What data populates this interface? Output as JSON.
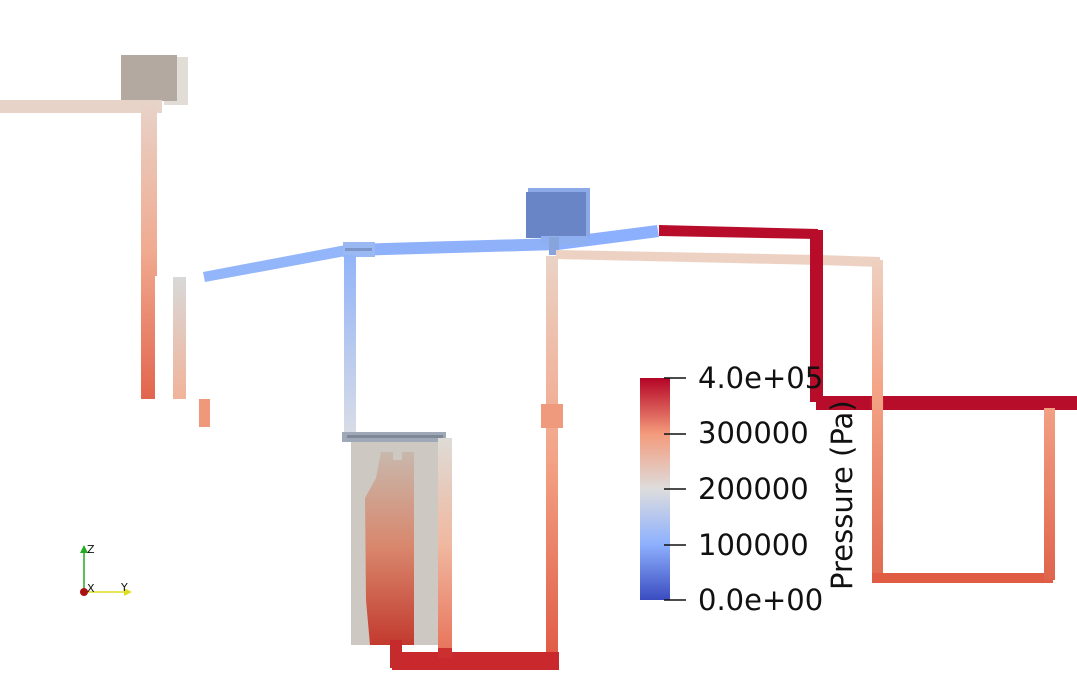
{
  "colorbar": {
    "title": "Pressure (Pa)",
    "range": [
      0,
      400000
    ],
    "ticks": [
      "4.0e+05",
      "300000",
      "200000",
      "100000",
      "0.0e+00"
    ],
    "tick_values": [
      400000,
      300000,
      200000,
      100000,
      0
    ],
    "colormap": [
      "#3b4cc0",
      "#8db0fe",
      "#dddddd",
      "#f49a7b",
      "#b40426"
    ]
  },
  "orientation_axes": {
    "z_label": "Z",
    "x_label": "X",
    "y_label": "Y",
    "colors": {
      "z": "#22aa22",
      "x": "#aa1111",
      "y": "#dddd22"
    }
  }
}
